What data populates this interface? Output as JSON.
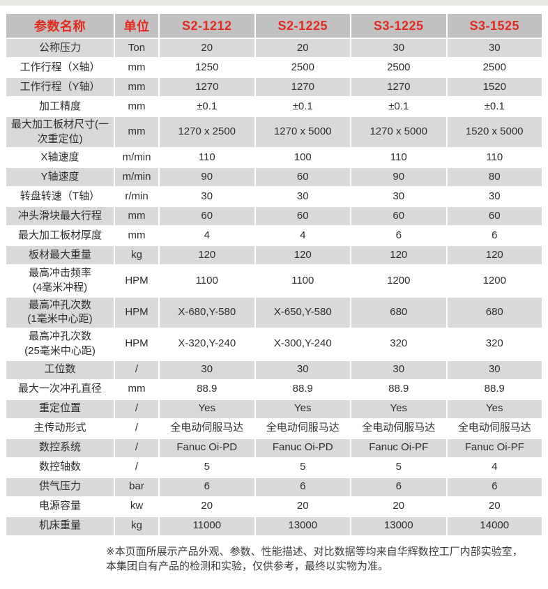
{
  "colors": {
    "header_bg": "#c1c1c1",
    "header_text_red": "#e2291d",
    "row_gray": "#d9d9d9",
    "row_white": "#ffffff",
    "body_text": "#2e2e2e",
    "top_strip": "#e9e8e5"
  },
  "table": {
    "headers": [
      "参数名称",
      "单位",
      "S2-1212",
      "S2-1225",
      "S3-1225",
      "S3-1525"
    ],
    "rows": [
      {
        "label": "公称压力",
        "unit": "Ton",
        "values": [
          "20",
          "20",
          "30",
          "30"
        ]
      },
      {
        "label": "工作行程（X轴）",
        "unit": "mm",
        "values": [
          "1250",
          "2500",
          "2500",
          "2500"
        ]
      },
      {
        "label": "工作行程（Y轴）",
        "unit": "mm",
        "values": [
          "1270",
          "1270",
          "1270",
          "1520"
        ]
      },
      {
        "label": "加工精度",
        "unit": "mm",
        "values": [
          "±0.1",
          "±0.1",
          "±0.1",
          "±0.1"
        ]
      },
      {
        "label": "最大加工板材尺寸(一\n次重定位)",
        "unit": "mm",
        "values": [
          "1270 x 2500",
          "1270 x 5000",
          "1270 x 5000",
          "1520 x 5000"
        ]
      },
      {
        "label": "X轴速度",
        "unit": "m/min",
        "values": [
          "110",
          "100",
          "110",
          "110"
        ]
      },
      {
        "label": "Y轴速度",
        "unit": "m/min",
        "values": [
          "90",
          "60",
          "90",
          "80"
        ]
      },
      {
        "label": "转盘转速（T轴）",
        "unit": "r/min",
        "values": [
          "30",
          "30",
          "30",
          "30"
        ]
      },
      {
        "label": "冲头滑块最大行程",
        "unit": "mm",
        "values": [
          "60",
          "60",
          "60",
          "60"
        ]
      },
      {
        "label": "最大加工板材厚度",
        "unit": "mm",
        "values": [
          "4",
          "4",
          "6",
          "6"
        ]
      },
      {
        "label": "板材最大重量",
        "unit": "kg",
        "values": [
          "120",
          "120",
          "120",
          "120"
        ]
      },
      {
        "label": "最高冲击频率\n(4毫米冲程)",
        "unit": "HPM",
        "values": [
          "1100",
          "1100",
          "1200",
          "1200"
        ]
      },
      {
        "label": "最高冲孔次数\n(1毫米中心距)",
        "unit": "HPM",
        "values": [
          "X-680,Y-580",
          "X-650,Y-580",
          "680",
          "680"
        ]
      },
      {
        "label": "最高冲孔次数\n(25毫米中心距)",
        "unit": "HPM",
        "values": [
          "X-320,Y-240",
          "X-300,Y-240",
          "320",
          "320"
        ]
      },
      {
        "label": "工位数",
        "unit": "/",
        "values": [
          "30",
          "30",
          "30",
          "30"
        ]
      },
      {
        "label": "最大一次冲孔直径",
        "unit": "mm",
        "values": [
          "88.9",
          "88.9",
          "88.9",
          "88.9"
        ]
      },
      {
        "label": "重定位置",
        "unit": "/",
        "values": [
          "Yes",
          "Yes",
          "Yes",
          "Yes"
        ]
      },
      {
        "label": "主传动形式",
        "unit": "/",
        "values": [
          "全电动伺服马达",
          "全电动伺服马达",
          "全电动伺服马达",
          "全电动伺服马达"
        ]
      },
      {
        "label": "数控系统",
        "unit": "/",
        "values": [
          "Fanuc Oi-PD",
          "Fanuc Oi-PD",
          "Fanuc Oi-PF",
          "Fanuc Oi-PF"
        ]
      },
      {
        "label": "数控轴数",
        "unit": "/",
        "values": [
          "5",
          "5",
          "5",
          "4"
        ]
      },
      {
        "label": "供气压力",
        "unit": "bar",
        "values": [
          "6",
          "6",
          "6",
          "6"
        ]
      },
      {
        "label": "电源容量",
        "unit": "kw",
        "values": [
          "20",
          "20",
          "20",
          "20"
        ]
      },
      {
        "label": "机床重量",
        "unit": "kg",
        "values": [
          "11000",
          "13000",
          "13000",
          "14000"
        ]
      }
    ]
  },
  "footer": {
    "line1": "※本页面所展示产品外观、参数、性能描述、对比数据等均来自华辉数控工厂内部实验室，",
    "line2": "本集团自有产品的检测和实验，仅供参考，最终以实物为准。"
  }
}
